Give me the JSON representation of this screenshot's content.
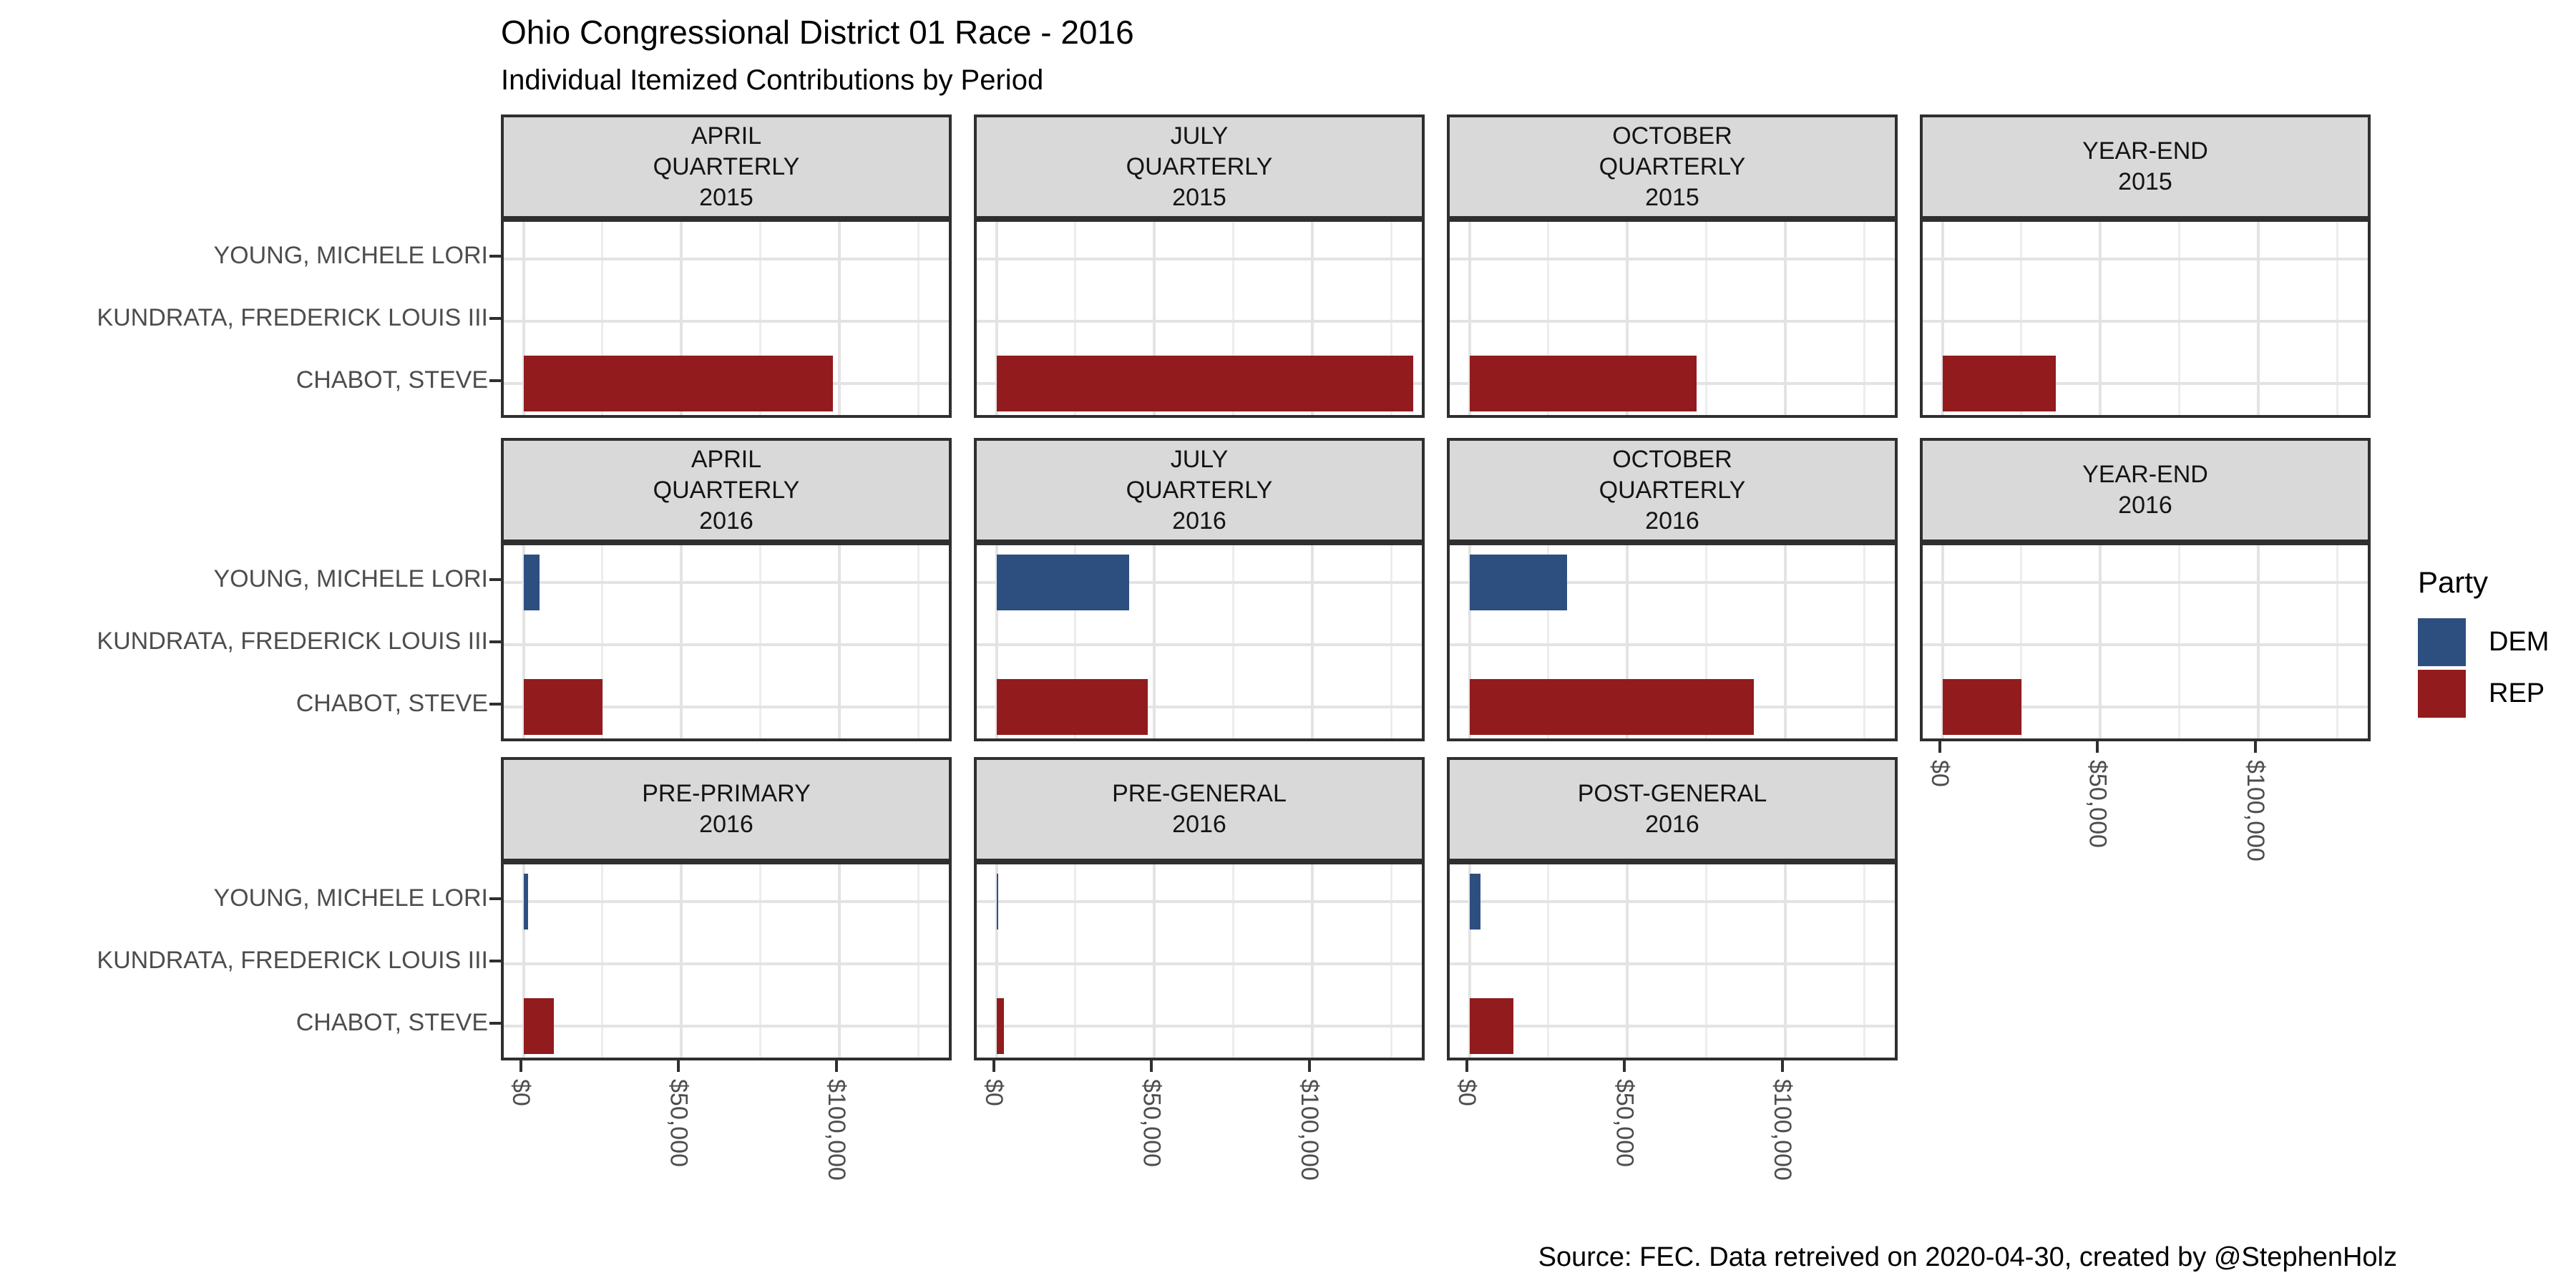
{
  "title": "Ohio Congressional District 01 Race - 2016",
  "subtitle": "Individual Itemized Contributions by Period",
  "caption": "Source: FEC. Data retreived on 2020-04-30, created by @StephenHolz",
  "legend": {
    "title": "Party",
    "entries": [
      {
        "label": "DEM",
        "color": "#2D4F80"
      },
      {
        "label": "REP",
        "color": "#911B1D"
      }
    ]
  },
  "chart_data": {
    "type": "bar",
    "orientation": "horizontal",
    "title": "Ohio Congressional District 01 Race - 2016",
    "subtitle": "Individual Itemized Contributions by Period",
    "candidates": [
      {
        "name": "YOUNG, MICHELE LORI",
        "party": "DEM"
      },
      {
        "name": "KUNDRATA, FREDERICK LOUIS III",
        "party": null
      },
      {
        "name": "CHABOT, STEVE",
        "party": "REP"
      }
    ],
    "x_axis": {
      "ticks": [
        {
          "label": "$0",
          "value": 0
        },
        {
          "label": "$50,000",
          "value": 50000
        },
        {
          "label": "$100,000",
          "value": 100000
        }
      ],
      "minor_gridline_values": [
        25000,
        75000,
        125000
      ],
      "xlim": [
        0,
        136000
      ]
    },
    "facets": [
      {
        "label": "APRIL\nQUARTERLY\n2015",
        "row": 0,
        "col": 0,
        "values": [
          0,
          0,
          98000
        ]
      },
      {
        "label": "JULY\nQUARTERLY\n2015",
        "row": 0,
        "col": 1,
        "values": [
          0,
          0,
          132000
        ]
      },
      {
        "label": "OCTOBER\nQUARTERLY\n2015",
        "row": 0,
        "col": 2,
        "values": [
          0,
          0,
          72000
        ]
      },
      {
        "label": "YEAR-END\n2015",
        "row": 0,
        "col": 3,
        "values": [
          0,
          0,
          36000
        ]
      },
      {
        "label": "APRIL\nQUARTERLY\n2016",
        "row": 1,
        "col": 0,
        "values": [
          5000,
          0,
          25000
        ]
      },
      {
        "label": "JULY\nQUARTERLY\n2016",
        "row": 1,
        "col": 1,
        "values": [
          42000,
          0,
          48000
        ]
      },
      {
        "label": "OCTOBER\nQUARTERLY\n2016",
        "row": 1,
        "col": 2,
        "values": [
          31000,
          0,
          90000
        ]
      },
      {
        "label": "YEAR-END\n2016",
        "row": 1,
        "col": 3,
        "values": [
          0,
          0,
          25000
        ]
      },
      {
        "label": "PRE-PRIMARY\n2016",
        "row": 2,
        "col": 0,
        "values": [
          1400,
          0,
          9600
        ]
      },
      {
        "label": "PRE-GENERAL\n2016",
        "row": 2,
        "col": 1,
        "values": [
          400,
          0,
          2400
        ]
      },
      {
        "label": "POST-GENERAL\n2016",
        "row": 2,
        "col": 2,
        "values": [
          3400,
          0,
          14000
        ]
      }
    ]
  }
}
